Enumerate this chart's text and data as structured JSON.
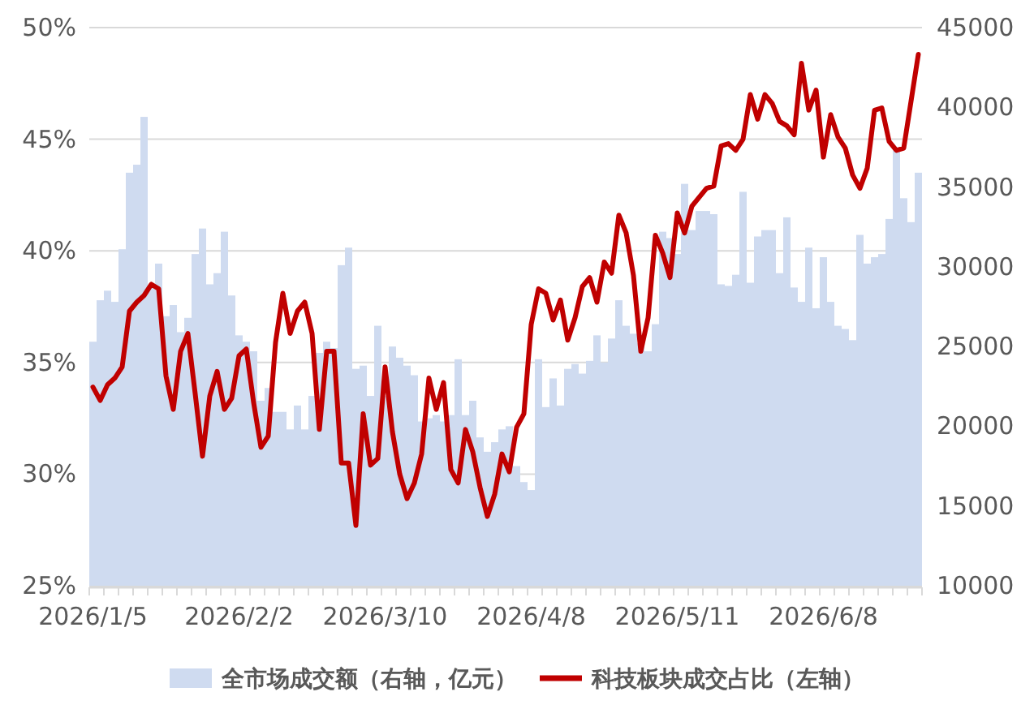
{
  "chart_data": {
    "type": "bar",
    "categories": [
      "2026/1/5",
      null,
      null,
      null,
      null,
      null,
      null,
      null,
      null,
      null,
      null,
      null,
      null,
      null,
      null,
      null,
      null,
      null,
      null,
      null,
      "2026/2/2",
      null,
      null,
      null,
      null,
      null,
      null,
      null,
      null,
      null,
      null,
      null,
      null,
      null,
      null,
      null,
      null,
      null,
      null,
      null,
      "2026/3/10",
      null,
      null,
      null,
      null,
      null,
      null,
      null,
      null,
      null,
      null,
      null,
      null,
      null,
      null,
      null,
      null,
      null,
      null,
      null,
      "2026/4/8",
      null,
      null,
      null,
      null,
      null,
      null,
      null,
      null,
      null,
      null,
      null,
      null,
      null,
      null,
      null,
      null,
      null,
      null,
      null,
      "2026/5/11",
      null,
      null,
      null,
      null,
      null,
      null,
      null,
      null,
      null,
      null,
      null,
      null,
      null,
      null,
      null,
      null,
      null,
      null,
      null,
      "2026/6/8",
      null,
      null,
      null,
      null,
      null,
      null,
      null,
      null,
      null,
      null,
      null,
      null,
      null
    ],
    "series": [
      {
        "name": "全市场成交额（右轴，亿元）",
        "axis": "y2",
        "color": "#cfdbf0",
        "values": [
          25300,
          27900,
          28500,
          27800,
          31100,
          35900,
          36400,
          39400,
          28800,
          30200,
          26900,
          27600,
          25900,
          26800,
          30800,
          32400,
          28900,
          29600,
          32200,
          28200,
          25700,
          25300,
          24700,
          21600,
          22400,
          20900,
          20900,
          19800,
          21300,
          19800,
          21900,
          24600,
          25300,
          24900,
          30100,
          31200,
          23600,
          23800,
          21900,
          26300,
          21900,
          25000,
          24300,
          23800,
          23200,
          20300,
          20500,
          20700,
          20300,
          20700,
          24200,
          20700,
          21600,
          19300,
          18400,
          19000,
          19800,
          20000,
          17500,
          16500,
          16000,
          24200,
          21200,
          23000,
          21300,
          23600,
          23900,
          23300,
          24100,
          25700,
          24000,
          25500,
          27900,
          26300,
          25800,
          25200,
          24700,
          26400,
          32200,
          31800,
          30800,
          35200,
          32300,
          33500,
          33500,
          33300,
          28900,
          28800,
          29500,
          34700,
          29000,
          31900,
          32300,
          32300,
          29600,
          33100,
          28700,
          27800,
          31200,
          27400,
          30600,
          27800,
          26300,
          26100,
          25400,
          32000,
          30200,
          30600,
          30800,
          33000,
          37300,
          34300,
          32800,
          35900
        ]
      },
      {
        "name": "科技板块成交占比（左轴）",
        "type": "line",
        "axis": "y",
        "color": "#c00000",
        "values": [
          33.9,
          33.3,
          34.0,
          34.3,
          34.8,
          37.3,
          37.7,
          38.0,
          38.5,
          38.3,
          34.4,
          32.9,
          35.5,
          36.3,
          33.6,
          30.8,
          33.5,
          34.6,
          32.9,
          33.4,
          35.3,
          35.6,
          33.2,
          31.2,
          31.7,
          35.9,
          38.1,
          36.3,
          37.3,
          37.7,
          36.3,
          32.0,
          35.5,
          35.5,
          30.5,
          30.5,
          27.7,
          32.7,
          30.4,
          30.7,
          34.8,
          31.9,
          30.0,
          28.9,
          29.6,
          30.9,
          34.3,
          32.9,
          34.1,
          30.2,
          29.6,
          32.0,
          31.0,
          29.4,
          28.1,
          29.1,
          30.9,
          30.1,
          32.1,
          32.7,
          36.7,
          38.3,
          38.1,
          36.9,
          37.8,
          36.0,
          37.0,
          38.4,
          38.8,
          37.7,
          39.5,
          39.0,
          41.6,
          40.8,
          38.9,
          35.5,
          37.0,
          40.7,
          39.9,
          38.8,
          41.7,
          40.8,
          42.0,
          42.4,
          42.8,
          42.9,
          44.7,
          44.8,
          44.5,
          45.0,
          47.0,
          45.9,
          47.0,
          46.6,
          45.8,
          45.6,
          45.2,
          48.4,
          46.3,
          47.2,
          44.2,
          46.1,
          45.1,
          44.6,
          43.4,
          42.8,
          43.7,
          46.3,
          46.4,
          44.9,
          44.5,
          44.6,
          46.7,
          48.8
        ]
      }
    ],
    "ylim": [
      25,
      50
    ],
    "yticks": [
      {
        "value": 25,
        "label": "25%"
      },
      {
        "value": 30,
        "label": "30%"
      },
      {
        "value": 35,
        "label": "35%"
      },
      {
        "value": 40,
        "label": "40%"
      },
      {
        "value": 45,
        "label": "45%"
      },
      {
        "value": 50,
        "label": "50%"
      }
    ],
    "y2lim": [
      10000,
      45000
    ],
    "y2ticks": [
      10000,
      15000,
      20000,
      25000,
      30000,
      35000,
      40000,
      45000
    ],
    "grid": "y",
    "legend": "bottom"
  }
}
